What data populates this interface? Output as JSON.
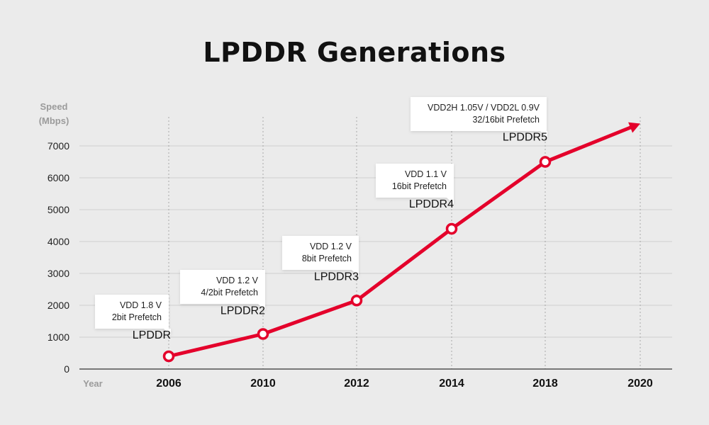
{
  "chart_data": {
    "type": "line",
    "title": "LPDDR Generations",
    "ylabel": "Speed",
    "ylabel_unit": "(Mbps)",
    "xlabel": "Year",
    "x_categories": [
      "2006",
      "2010",
      "2012",
      "2014",
      "2018",
      "2020"
    ],
    "y_ticks": [
      "0",
      "1000",
      "2000",
      "3000",
      "4000",
      "5000",
      "6000",
      "7000"
    ],
    "ylim": [
      0,
      7000
    ],
    "grid": "horizontal solid, vertical dotted",
    "arrow_to": {
      "x": "2020",
      "y": 7700
    },
    "series": [
      {
        "color": "#e4002b",
        "points": [
          {
            "x": "2006",
            "y": 400,
            "generation": "LPDDR",
            "callout": [
              "VDD 1.8 V",
              "2bit Prefetch"
            ]
          },
          {
            "x": "2010",
            "y": 1100,
            "generation": "LPDDR2",
            "callout": [
              "VDD 1.2 V",
              "4/2bit Prefetch"
            ]
          },
          {
            "x": "2012",
            "y": 2150,
            "generation": "LPDDR3",
            "callout": [
              "VDD 1.2 V",
              "8bit Prefetch"
            ]
          },
          {
            "x": "2014",
            "y": 4400,
            "generation": "LPDDR4",
            "callout": [
              "VDD 1.1 V",
              "16bit Prefetch"
            ]
          },
          {
            "x": "2018",
            "y": 6500,
            "generation": "LPDDR5",
            "callout": [
              "VDD2H 1.05V / VDD2L 0.9V",
              "32/16bit Prefetch"
            ]
          }
        ]
      }
    ]
  },
  "colors": {
    "background": "#ebebeb",
    "line": "#e4002b",
    "grid": "#cfcfcf",
    "axis": "#333333",
    "callout_bg": "#ffffff"
  }
}
